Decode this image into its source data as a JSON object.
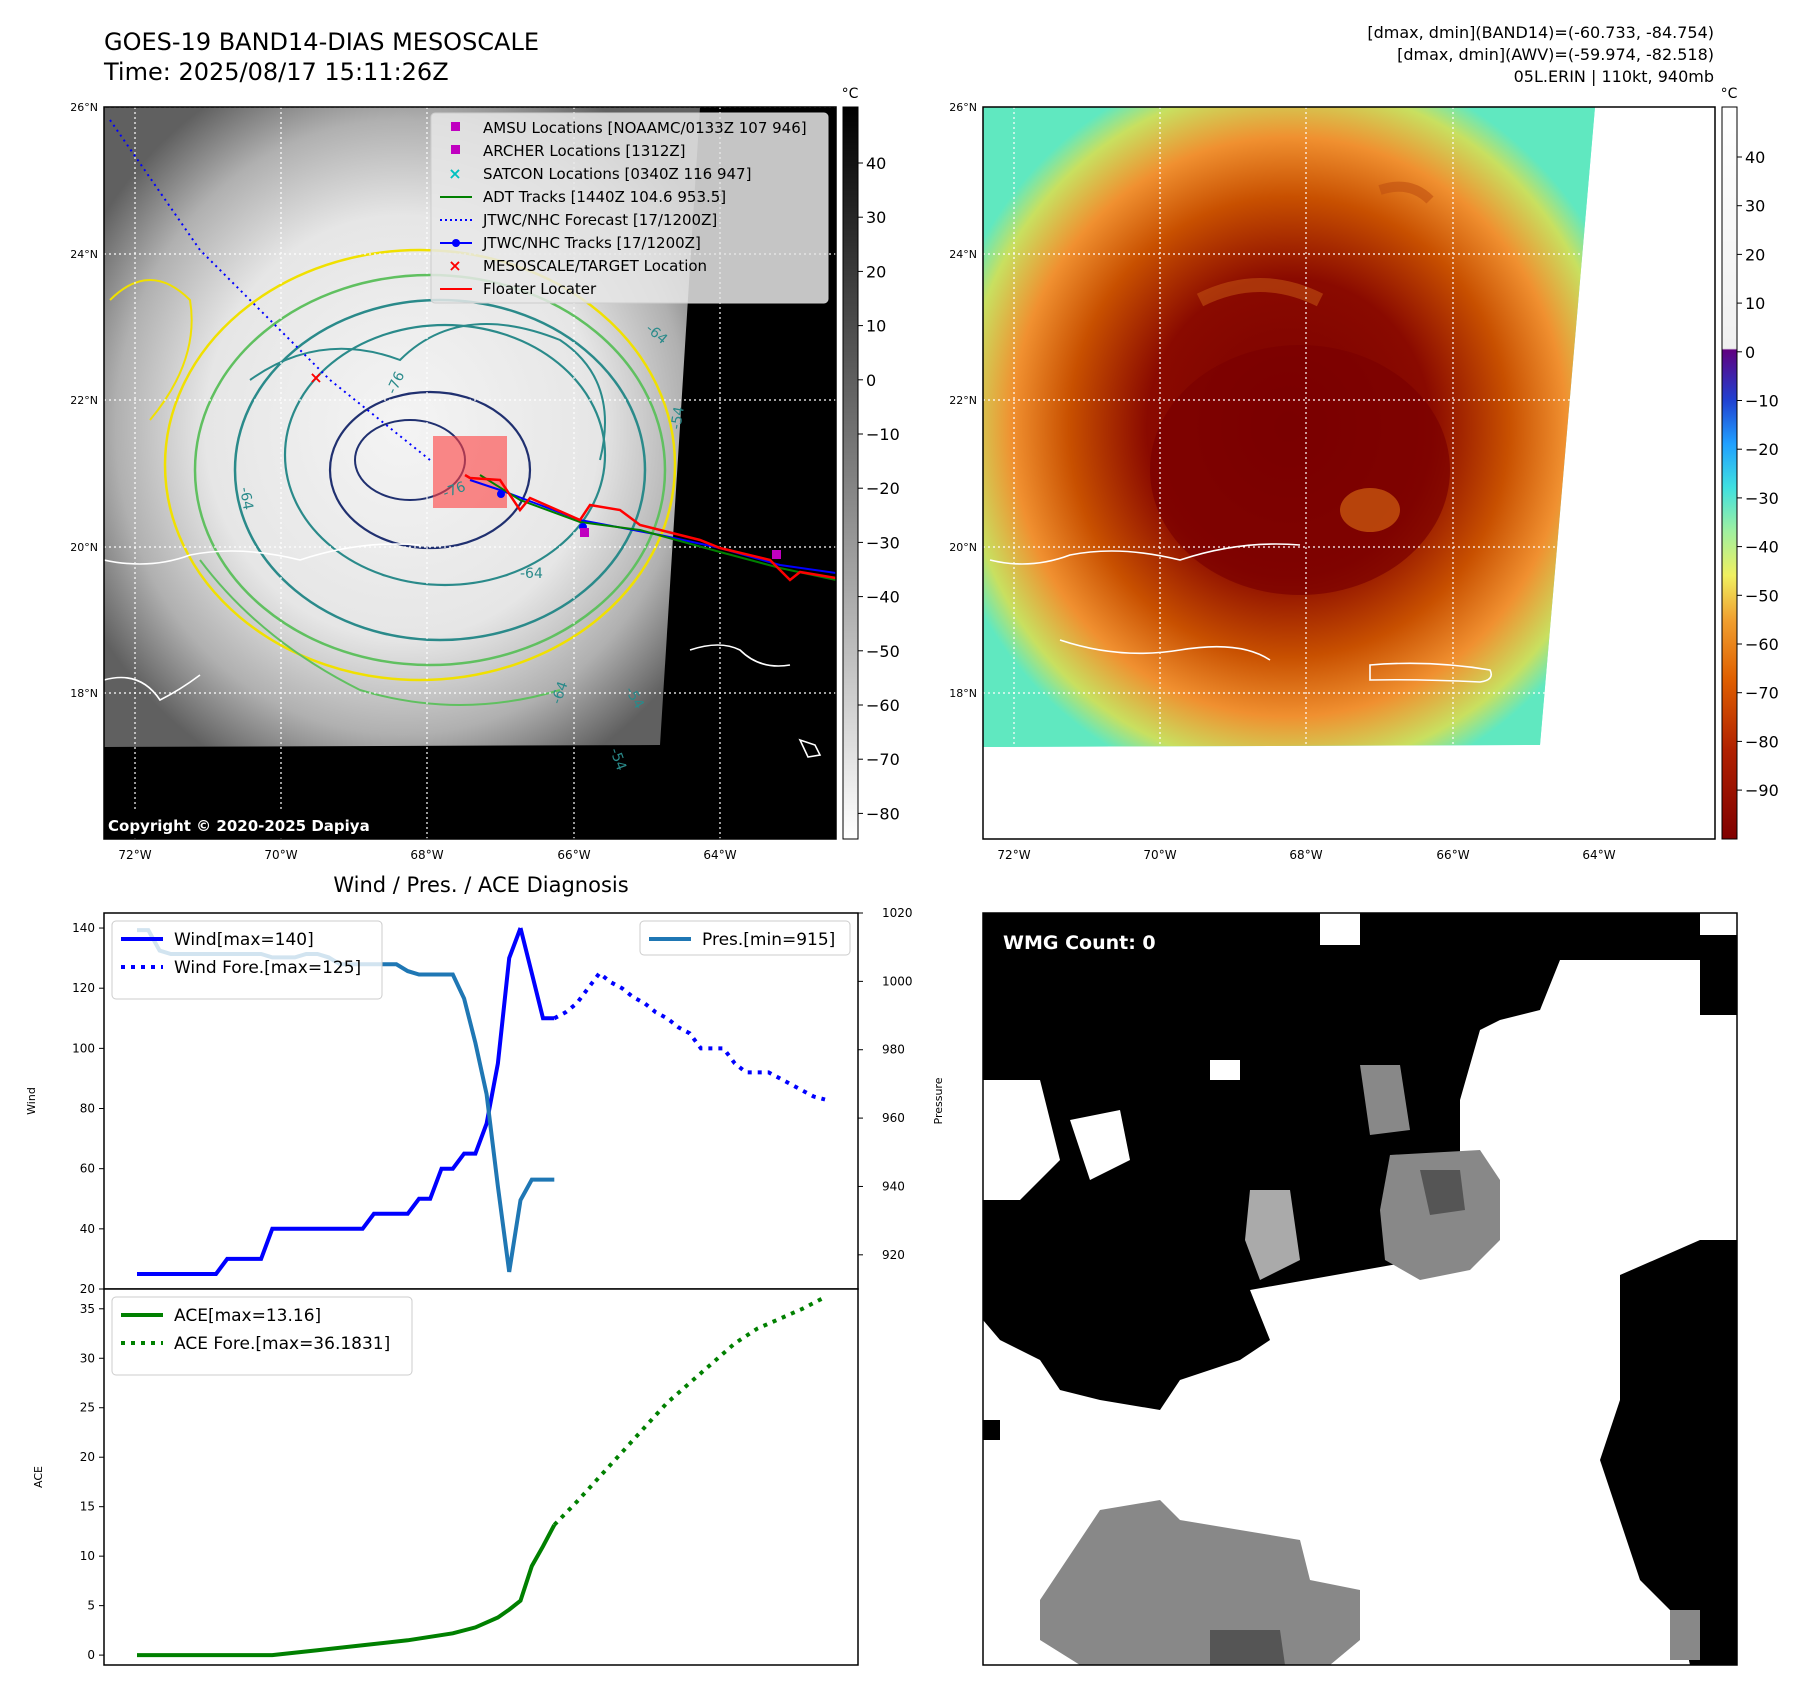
{
  "header": {
    "title_line1": "GOES-19 BAND14-DIAS MESOSCALE",
    "title_line2": "Time: 2025/08/17 15:11:26Z",
    "info_line1": "[dmax, dmin](BAND14)=(-60.733, -84.754)",
    "info_line2": "[dmax, dmin](AWV)=(-59.974, -82.518)",
    "info_line3": "05L.ERIN | 110kt, 940mb"
  },
  "maps": {
    "lat_ticks": [
      "26°N",
      "24°N",
      "22°N",
      "20°N",
      "18°N"
    ],
    "lon_ticks": [
      "72°W",
      "70°W",
      "68°W",
      "66°W",
      "64°W"
    ],
    "copyright": "Copyright © 2020-2025 Dapiya",
    "contour_labels": [
      "-76",
      "-76",
      "-64",
      "-64",
      "-54",
      "-54",
      "-64",
      "-64",
      "-54"
    ],
    "legend": [
      {
        "label": "AMSU Locations [NOAAMC/0133Z 107 946]",
        "marker": "square",
        "color": "#c000c0"
      },
      {
        "label": "ARCHER Locations [1312Z]",
        "marker": "square",
        "color": "#c000c0"
      },
      {
        "label": "SATCON Locations [0340Z 116 947]",
        "marker": "x",
        "color": "#00c0c0"
      },
      {
        "label": "ADT Tracks [1440Z 104.6 953.5]",
        "marker": "line",
        "color": "#008000"
      },
      {
        "label": "JTWC/NHC Forecast [17/1200Z]",
        "marker": "dotted",
        "color": "#0000ff"
      },
      {
        "label": "JTWC/NHC Tracks [17/1200Z]",
        "marker": "line-dot",
        "color": "#0000ff"
      },
      {
        "label": "MESOSCALE/TARGET Location",
        "marker": "x",
        "color": "#ff0000"
      },
      {
        "label": "Floater Locater",
        "marker": "line",
        "color": "#ff0000"
      }
    ],
    "colorbar_unit": "°C",
    "gray_colorbar_ticks": [
      "40",
      "30",
      "20",
      "10",
      "0",
      "−10",
      "−20",
      "−30",
      "−40",
      "−50",
      "−60",
      "−70",
      "−80"
    ],
    "color_colorbar_ticks": [
      "40",
      "30",
      "20",
      "10",
      "0",
      "−10",
      "−20",
      "−30",
      "−40",
      "−50",
      "−60",
      "−70",
      "−80",
      "−90"
    ]
  },
  "chart_data": [
    {
      "type": "line",
      "title": "Wind / Pres. / ACE Diagnosis",
      "ylabel": "Wind",
      "y2label": "Pressure",
      "ylim": [
        20,
        145
      ],
      "y2lim": [
        910,
        1020
      ],
      "yticks": [
        20,
        40,
        60,
        80,
        100,
        120,
        140
      ],
      "y2ticks": [
        920,
        940,
        960,
        980,
        1000,
        1020
      ],
      "series": [
        {
          "name": "Wind[max=140]",
          "axis": "left",
          "style": "solid",
          "color": "#0000ff",
          "x": [
            0,
            1,
            2,
            3,
            4,
            5,
            6,
            7,
            8,
            9,
            10,
            11,
            12,
            13,
            14,
            15,
            16,
            17,
            18,
            19,
            20,
            21,
            22,
            23,
            24,
            25,
            26,
            27,
            28,
            29,
            30,
            31,
            32,
            33,
            34
          ],
          "values": [
            25,
            25,
            25,
            25,
            25,
            25,
            25,
            25,
            30,
            30,
            30,
            30,
            40,
            40,
            40,
            40,
            40,
            40,
            40,
            40,
            40,
            45,
            45,
            45,
            45,
            50,
            50,
            60,
            60,
            65,
            65,
            75,
            95,
            130,
            140
          ]
        },
        {
          "name": "Wind[max=140]",
          "axis": "left",
          "style": "solid",
          "color": "#0000ff",
          "x": [
            34,
            35,
            36,
            37
          ],
          "values": [
            140,
            125,
            110,
            110
          ]
        },
        {
          "name": "Wind Fore.[max=125]",
          "axis": "left",
          "style": "dotted",
          "color": "#0000ff",
          "x": [
            37,
            38,
            39,
            40,
            41,
            42,
            43,
            44,
            45,
            46,
            47,
            48,
            49,
            50,
            51,
            52,
            53,
            54,
            55,
            56,
            57,
            58,
            59,
            60,
            61
          ],
          "values": [
            110,
            112,
            115,
            120,
            125,
            122,
            120,
            117,
            115,
            112,
            110,
            107,
            105,
            100,
            100,
            100,
            95,
            92,
            92,
            92,
            90,
            88,
            86,
            84,
            83
          ]
        },
        {
          "name": "Pres.[min=915]",
          "axis": "right",
          "style": "solid",
          "color": "#1f77b4",
          "x": [
            0,
            0.5,
            1,
            2,
            3,
            4,
            5,
            6,
            7,
            8,
            9,
            10,
            11,
            12,
            13,
            14,
            15,
            16,
            17,
            18,
            19,
            20,
            21,
            22,
            23,
            24,
            25,
            26,
            27,
            28,
            29,
            30,
            31,
            32,
            33,
            34,
            35,
            36,
            37
          ],
          "values": [
            1015,
            1015,
            1015,
            1009,
            1008,
            1008,
            1008,
            1008,
            1008,
            1008,
            1008,
            1008,
            1008,
            1007,
            1007,
            1007,
            1008,
            1008,
            1007,
            1005,
            1005,
            1005,
            1005,
            1005,
            1005,
            1003,
            1002,
            1002,
            1002,
            1002,
            995,
            982,
            967,
            940,
            915,
            936,
            942,
            942,
            942
          ]
        }
      ],
      "legend": [
        {
          "label": "Wind[max=140]",
          "placement": "upper-left"
        },
        {
          "label": "Wind Fore.[max=125]",
          "placement": "upper-left"
        },
        {
          "label": "Pres.[min=915]",
          "placement": "upper-right"
        }
      ]
    },
    {
      "type": "line",
      "ylabel": "ACE",
      "ylim": [
        -1,
        37
      ],
      "yticks": [
        0,
        5,
        10,
        15,
        20,
        25,
        30,
        35
      ],
      "series": [
        {
          "name": "ACE[max=13.16]",
          "style": "solid",
          "color": "#008000",
          "x": [
            0,
            4,
            8,
            12,
            16,
            20,
            24,
            28,
            30,
            32,
            33,
            34,
            35,
            36,
            37
          ],
          "values": [
            0,
            0,
            0,
            0,
            0.5,
            1.0,
            1.5,
            2.2,
            2.8,
            3.8,
            4.6,
            5.5,
            9,
            11,
            13.16
          ]
        },
        {
          "name": "ACE Fore.[max=36.1831]",
          "style": "dotted",
          "color": "#008000",
          "x": [
            37,
            39,
            41,
            43,
            45,
            47,
            49,
            51,
            53,
            55,
            57,
            59,
            61
          ],
          "values": [
            13.16,
            15.5,
            18,
            20.5,
            23,
            25.5,
            27.5,
            29.5,
            31.5,
            33,
            34,
            35,
            36.18
          ]
        }
      ],
      "legend": [
        {
          "label": "ACE[max=13.16]",
          "placement": "upper-left"
        },
        {
          "label": "ACE Fore.[max=36.1831]",
          "placement": "upper-left"
        }
      ]
    }
  ],
  "wmg": {
    "label": "WMG Count: 0"
  }
}
